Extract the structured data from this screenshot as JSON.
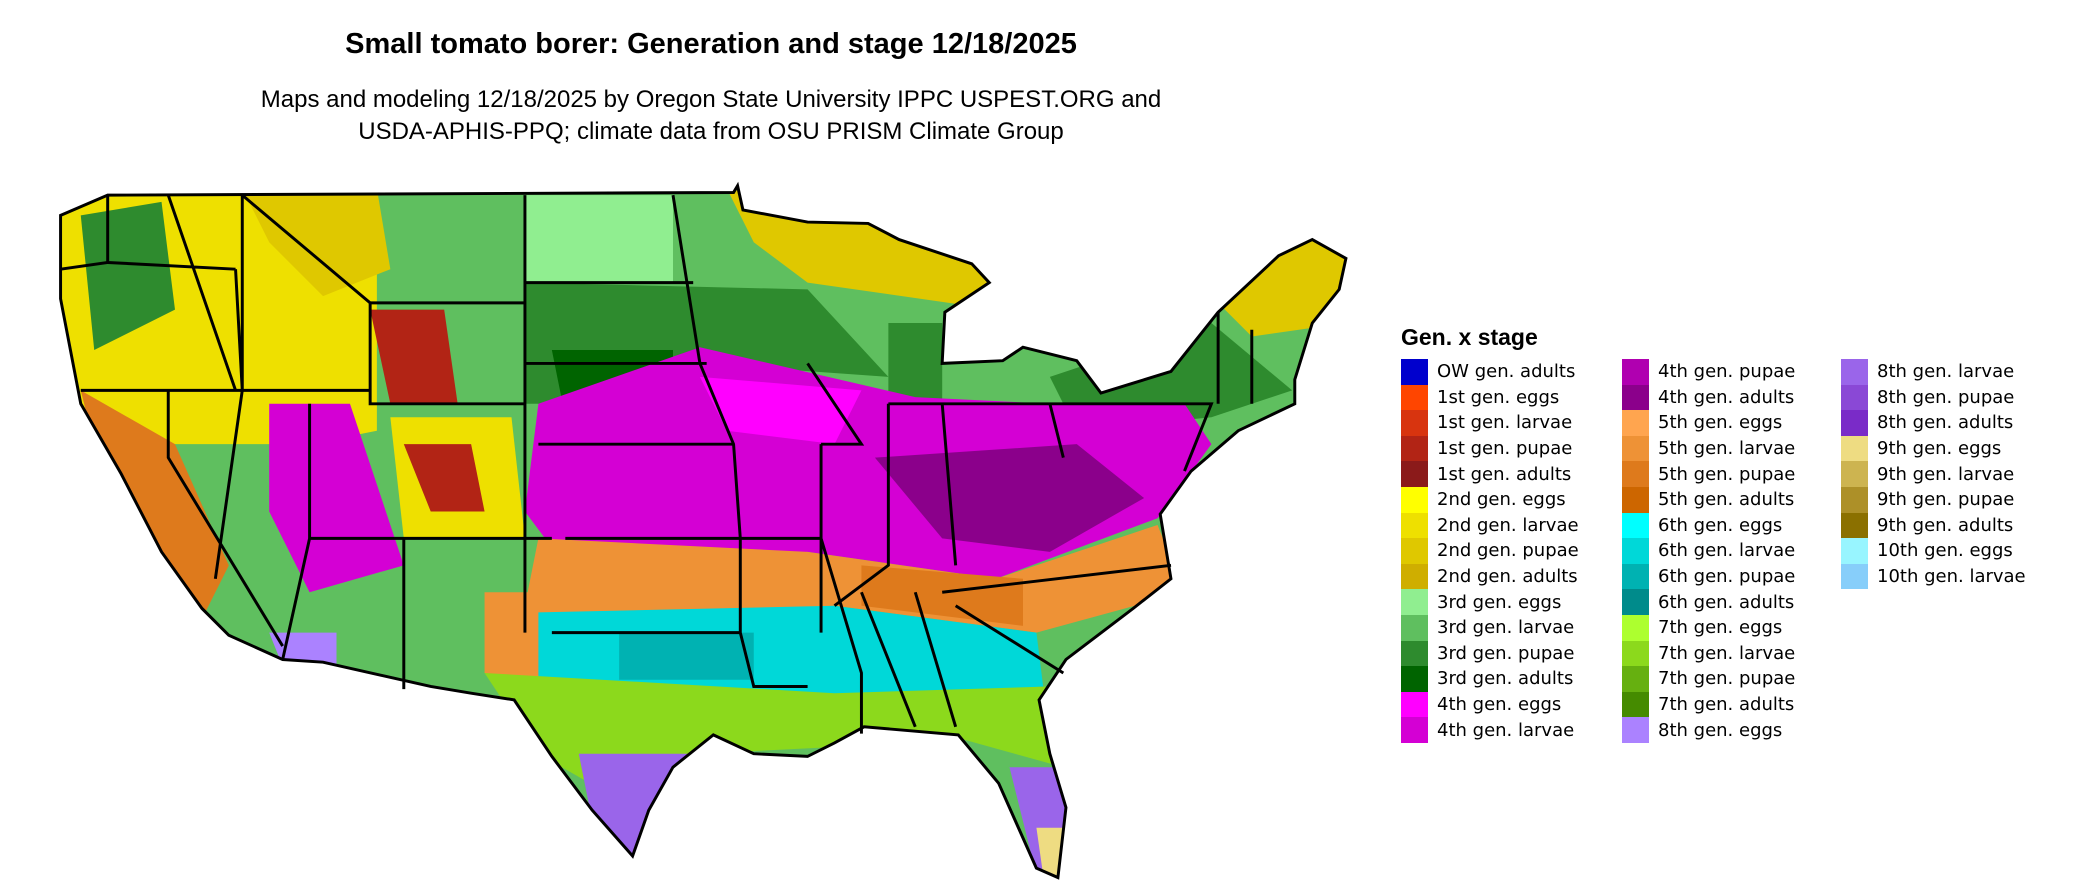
{
  "title": "Small tomato borer: Generation and stage 12/18/2025",
  "subtitle_line1": "Maps and modeling 12/18/2025 by Oregon State University IPPC USPEST.ORG and",
  "subtitle_line2": "USDA-APHIS-PPQ; climate data from OSU PRISM Climate Group",
  "legend": {
    "title": "Gen. x stage",
    "columns": 3,
    "items": [
      {
        "label": "OW gen. adults",
        "color": "#0000cd"
      },
      {
        "label": "1st gen. eggs",
        "color": "#ff4500"
      },
      {
        "label": "1st gen. larvae",
        "color": "#d8340f"
      },
      {
        "label": "1st gen. pupae",
        "color": "#b22415"
      },
      {
        "label": "1st gen. adults",
        "color": "#8b1a1a"
      },
      {
        "label": "2nd gen. eggs",
        "color": "#ffff00"
      },
      {
        "label": "2nd gen. larvae",
        "color": "#eee000"
      },
      {
        "label": "2nd gen. pupae",
        "color": "#dfc800"
      },
      {
        "label": "2nd gen. adults",
        "color": "#cfae00"
      },
      {
        "label": "3rd gen. eggs",
        "color": "#90ee90"
      },
      {
        "label": "3rd gen. larvae",
        "color": "#5fbf5f"
      },
      {
        "label": "3rd gen. pupae",
        "color": "#2e8b2e"
      },
      {
        "label": "3rd gen. adults",
        "color": "#006400"
      },
      {
        "label": "4th gen. eggs",
        "color": "#ff00ff"
      },
      {
        "label": "4th gen. larvae",
        "color": "#d400d4"
      },
      {
        "label": "4th gen. pupae",
        "color": "#b000b0"
      },
      {
        "label": "4th gen. adults",
        "color": "#8b008b"
      },
      {
        "label": "5th gen. eggs",
        "color": "#ffa54f"
      },
      {
        "label": "5th gen. larvae",
        "color": "#ee9236"
      },
      {
        "label": "5th gen. pupae",
        "color": "#de7a1c"
      },
      {
        "label": "5th gen. adults",
        "color": "#cd6600"
      },
      {
        "label": "6th gen. eggs",
        "color": "#00ffff"
      },
      {
        "label": "6th gen. larvae",
        "color": "#00d8d8"
      },
      {
        "label": "6th gen. pupae",
        "color": "#00b2b2"
      },
      {
        "label": "6th gen. adults",
        "color": "#008b8b"
      },
      {
        "label": "7th gen. eggs",
        "color": "#adff2f"
      },
      {
        "label": "7th gen. larvae",
        "color": "#8cd91c"
      },
      {
        "label": "7th gen. pupae",
        "color": "#66b010"
      },
      {
        "label": "7th gen. adults",
        "color": "#458b00"
      },
      {
        "label": "8th gen. eggs",
        "color": "#ab82ff"
      },
      {
        "label": "8th gen. larvae",
        "color": "#9a65ea"
      },
      {
        "label": "8th gen. pupae",
        "color": "#8a48d6"
      },
      {
        "label": "8th gen. adults",
        "color": "#7a2bc8"
      },
      {
        "label": "9th gen. eggs",
        "color": "#eedc82"
      },
      {
        "label": "9th gen. larvae",
        "color": "#cdb450"
      },
      {
        "label": "9th gen. pupae",
        "color": "#ad9028"
      },
      {
        "label": "9th gen. adults",
        "color": "#8b7000"
      },
      {
        "label": "10th gen. eggs",
        "color": "#98f5ff"
      },
      {
        "label": "10th gen. larvae",
        "color": "#87cefa"
      }
    ]
  }
}
